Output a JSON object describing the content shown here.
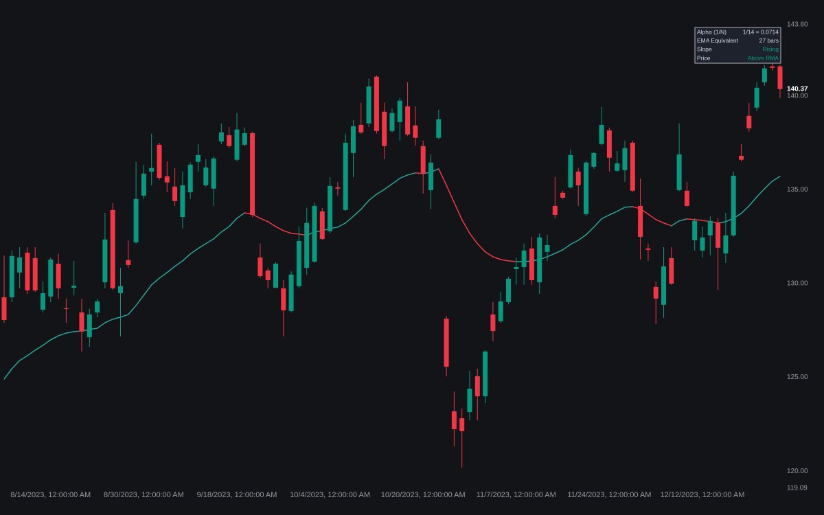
{
  "chart_data": {
    "type": "candlestick",
    "open": [
      129.27,
      129.27,
      130.59,
      131.65,
      131.36,
      128.61,
      129.31,
      131.06,
      128.68,
      129.78,
      128.46,
      127.14,
      128.46,
      130.07,
      133.92,
      129.49,
      131.25,
      132.2,
      134.69,
      135.97,
      137.4,
      135.72,
      135.17,
      133.55,
      134.87,
      136.49,
      135.24,
      135.06,
      137.58,
      137.91,
      136.6,
      137.4,
      138.02,
      131.39,
      130.7,
      129.78,
      129.75,
      128.54,
      129.86,
      130.84,
      131.17,
      133.85,
      132.79,
      135.13,
      133.92,
      136.96,
      138.46,
      138.54,
      141.03,
      139.16,
      138.13,
      138.61,
      139.45,
      138.43,
      137.33,
      134.98,
      137.77,
      128.13,
      123.19,
      122.82,
      123.15,
      125.06,
      123.99,
      128.35,
      127.99,
      129.01,
      130.77,
      130.88,
      131.87,
      130.07,
      131.69,
      134.14,
      134.84,
      135.13,
      135.97,
      133.7,
      136.23,
      137.44,
      138.17,
      136.01,
      136.05,
      137.51,
      134.14,
      131.87,
      129.82,
      128.87,
      131.36,
      134.98,
      134.95,
      132.31,
      131.76,
      132.57,
      133.26,
      131.61,
      132.57,
      136.81,
      138.94,
      139.38,
      140.73,
      141.58,
      141.58
    ],
    "high": [
      131.5,
      131.76,
      131.94,
      131.94,
      131.94,
      130.11,
      131.39,
      131.58,
      129.2,
      131.21,
      129.2,
      128.65,
      129.2,
      133.77,
      134.29,
      130.84,
      132.31,
      136.49,
      136.34,
      137.99,
      137.51,
      136.52,
      136.16,
      135.97,
      136.45,
      137.44,
      136.63,
      136.78,
      138.54,
      138.35,
      139.09,
      138.32,
      138.1,
      132.13,
      130.84,
      131.14,
      130.18,
      130.66,
      133.04,
      134.03,
      134.32,
      134.03,
      135.68,
      135.42,
      137.99,
      138.72,
      139.64,
      140.92,
      141.1,
      139.64,
      139.34,
      139.89,
      140.73,
      139.45,
      137.62,
      136.89,
      139.27,
      128.28,
      124.25,
      123.34,
      125.35,
      125.46,
      126.45,
      129.01,
      129.56,
      130.37,
      131.39,
      132.13,
      132.49,
      132.68,
      132.6,
      135.68,
      134.95,
      137.14,
      136.16,
      136.52,
      137.0,
      139.42,
      138.32,
      137.07,
      137.62,
      137.62,
      135.61,
      132.13,
      130.11,
      131.94,
      131.94,
      138.54,
      135.42,
      133.48,
      133.04,
      133.59,
      133.48,
      133.77,
      135.97,
      137.44,
      139.64,
      140.73,
      141.65,
      141.83,
      141.65
    ],
    "low": [
      127.91,
      129.01,
      129.75,
      129.45,
      129.56,
      128.46,
      129.01,
      129.2,
      127.91,
      129.38,
      126.38,
      126.63,
      128.21,
      129.75,
      129.67,
      127.18,
      130.84,
      132.13,
      134.51,
      135.24,
      135.53,
      134.87,
      134.14,
      132.93,
      134.51,
      135.97,
      135.17,
      134.14,
      137.44,
      137.25,
      136.52,
      137.33,
      133.55,
      130.29,
      129.75,
      129.75,
      127.18,
      128.46,
      129.75,
      130.48,
      131.1,
      132.31,
      132.68,
      134.69,
      133.88,
      135.68,
      137.99,
      138.35,
      137.99,
      136.63,
      138.06,
      137.62,
      137.88,
      137.36,
      134.8,
      133.96,
      137.69,
      125.06,
      121.32,
      120.19,
      122.71,
      122.71,
      123.63,
      126.92,
      127.91,
      128.9,
      129.93,
      129.93,
      129.93,
      129.45,
      131.21,
      133.48,
      134.51,
      135.06,
      134.14,
      133.59,
      136.12,
      137.36,
      135.97,
      135.97,
      135.42,
      134.87,
      131.28,
      131.21,
      127.84,
      128.17,
      129.93,
      134.95,
      134.07,
      131.76,
      131.39,
      131.5,
      129.67,
      131.1,
      132.49,
      136.52,
      138.1,
      139.2,
      140.55,
      141.36,
      139.89
    ],
    "close": [
      128.06,
      131.47,
      131.39,
      129.64,
      129.64,
      129.49,
      131.28,
      129.75,
      128.65,
      129.89,
      127.44,
      128.35,
      129.05,
      132.35,
      129.75,
      129.86,
      130.99,
      134.51,
      135.86,
      136.16,
      135.64,
      135.39,
      134.4,
      135.24,
      136.34,
      136.85,
      136.19,
      136.67,
      138.06,
      137.33,
      138.21,
      138.02,
      133.66,
      130.4,
      130.18,
      131.06,
      128.57,
      130.48,
      132.27,
      133.23,
      134.14,
      132.38,
      135.2,
      135.06,
      137.51,
      138.39,
      138.06,
      140.51,
      138.13,
      137.33,
      139.09,
      139.75,
      137.95,
      137.77,
      135.86,
      136.45,
      138.76,
      125.57,
      122.24,
      122.13,
      124.4,
      123.99,
      126.38,
      127.47,
      129.05,
      130.26,
      130.88,
      131.76,
      130.18,
      132.46,
      132.05,
      133.66,
      134.58,
      136.85,
      135.24,
      136.45,
      136.96,
      138.46,
      136.71,
      136.41,
      137.22,
      134.95,
      132.49,
      131.8,
      129.2,
      130.92,
      130.0,
      136.89,
      134.14,
      133.34,
      132.46,
      133.34,
      131.91,
      132.57,
      135.75,
      136.6,
      138.28,
      140.44,
      141.47,
      141.5,
      140.37
    ],
    "ema_values": [
      124.91,
      125.46,
      125.9,
      126.16,
      126.45,
      126.71,
      127.0,
      127.22,
      127.36,
      127.44,
      127.47,
      127.55,
      127.62,
      127.91,
      128.1,
      128.21,
      128.35,
      128.83,
      129.38,
      129.93,
      130.29,
      130.59,
      130.92,
      131.21,
      131.58,
      131.87,
      132.13,
      132.38,
      132.75,
      133.04,
      133.48,
      133.77,
      133.7,
      133.48,
      133.3,
      133.04,
      132.82,
      132.68,
      132.64,
      132.57,
      132.75,
      132.82,
      132.93,
      133.01,
      133.23,
      133.59,
      133.96,
      134.43,
      134.76,
      135.02,
      135.31,
      135.61,
      135.79,
      135.9,
      135.86,
      135.94,
      136.12,
      135.24,
      134.32,
      133.41,
      132.68,
      132.13,
      131.69,
      131.43,
      131.28,
      131.21,
      131.17,
      131.17,
      131.21,
      131.28,
      131.43,
      131.61,
      131.8,
      132.09,
      132.31,
      132.6,
      133.01,
      133.45,
      133.66,
      133.85,
      134.07,
      134.1,
      133.99,
      133.7,
      133.41,
      133.23,
      133.08,
      133.34,
      133.45,
      133.41,
      133.37,
      133.3,
      133.23,
      133.3,
      133.48,
      133.74,
      134.14,
      134.62,
      135.06,
      135.46,
      135.72
    ],
    "up_color": "#089981",
    "down_color": "#f23645",
    "rising_color": "#26a69a",
    "falling_color": "#f23645",
    "ylim": [
      119.09,
      143.8
    ],
    "yticks": [
      {
        "value": 119.09,
        "label": "119.09"
      },
      {
        "value": 120,
        "label": "120.00"
      },
      {
        "value": 125,
        "label": "125.00"
      },
      {
        "value": 130,
        "label": "130.00"
      },
      {
        "value": 135,
        "label": "135.00"
      },
      {
        "value": 140,
        "label": "140.00"
      },
      {
        "value": 143.8,
        "label": "143.80"
      }
    ],
    "xticks": [
      {
        "value": 6,
        "label": "8/14/2023, 12:00:00 AM"
      },
      {
        "value": 18,
        "label": "8/30/2023, 12:00:00 AM"
      },
      {
        "value": 30,
        "label": "9/18/2023, 12:00:00 AM"
      },
      {
        "value": 42,
        "label": "10/4/2023, 12:00:00 AM"
      },
      {
        "value": 54,
        "label": "10/20/2023, 12:00:00 AM"
      },
      {
        "value": 66,
        "label": "11/7/2023, 12:00:00 AM"
      },
      {
        "value": 78,
        "label": "11/24/2023, 12:00:00 AM"
      },
      {
        "value": 90,
        "label": "12/12/2023, 12:00:00 AM"
      }
    ],
    "grid": false,
    "info_panel": [
      {
        "label": "Alpha (1/N)",
        "value": "1/14 = 0.0714",
        "color": "#d1d4dc"
      },
      {
        "label": "EMA Equivalent",
        "value": "27 bars",
        "color": "#d1d4dc"
      },
      {
        "label": "Slope",
        "value": "Rising",
        "color": "#089981"
      },
      {
        "label": "Price",
        "value": "Above RMA",
        "color": "#089981"
      }
    ]
  }
}
